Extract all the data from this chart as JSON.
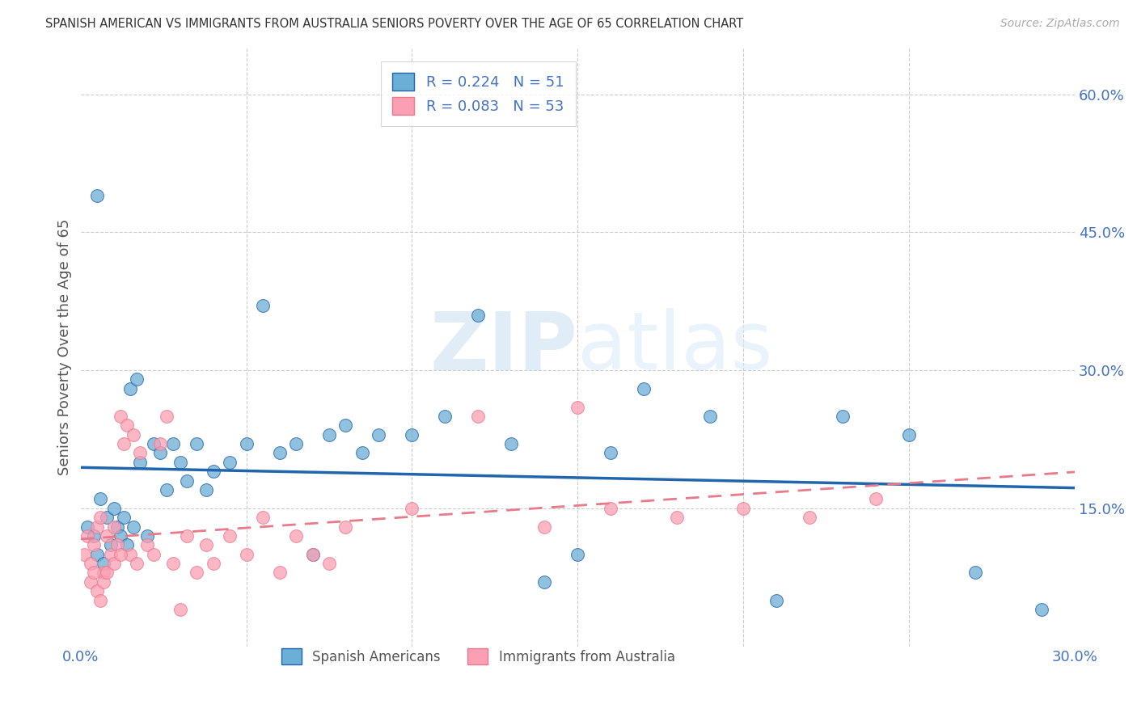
{
  "title": "SPANISH AMERICAN VS IMMIGRANTS FROM AUSTRALIA SENIORS POVERTY OVER THE AGE OF 65 CORRELATION CHART",
  "source": "Source: ZipAtlas.com",
  "ylabel": "Seniors Poverty Over the Age of 65",
  "right_yticks": [
    0.0,
    0.15,
    0.3,
    0.45,
    0.6
  ],
  "right_yticklabels": [
    "",
    "15.0%",
    "30.0%",
    "45.0%",
    "60.0%"
  ],
  "xlim": [
    0.0,
    0.3
  ],
  "ylim": [
    0.0,
    0.65
  ],
  "xticks": [
    0.0,
    0.05,
    0.1,
    0.15,
    0.2,
    0.25,
    0.3
  ],
  "xticklabels": [
    "0.0%",
    "",
    "",
    "",
    "",
    "",
    "30.0%"
  ],
  "legend_label1": "Spanish Americans",
  "legend_label2": "Immigrants from Australia",
  "r1": 0.224,
  "n1": 51,
  "r2": 0.083,
  "n2": 53,
  "color1": "#6baed6",
  "color2": "#fc9fb5",
  "trendline1_color": "#2166ac",
  "trendline2_color": "#e87a8a",
  "watermark_zip": "ZIP",
  "watermark_atlas": "atlas",
  "background_color": "#ffffff",
  "grid_color": "#cccccc",
  "spanish_x": [
    0.002,
    0.004,
    0.005,
    0.006,
    0.007,
    0.008,
    0.009,
    0.01,
    0.011,
    0.012,
    0.013,
    0.014,
    0.015,
    0.016,
    0.017,
    0.018,
    0.02,
    0.022,
    0.024,
    0.026,
    0.028,
    0.03,
    0.032,
    0.035,
    0.038,
    0.04,
    0.045,
    0.05,
    0.055,
    0.06,
    0.065,
    0.07,
    0.075,
    0.08,
    0.085,
    0.09,
    0.1,
    0.11,
    0.12,
    0.13,
    0.14,
    0.15,
    0.16,
    0.17,
    0.19,
    0.21,
    0.23,
    0.25,
    0.27,
    0.29,
    0.005
  ],
  "spanish_y": [
    0.13,
    0.12,
    0.1,
    0.16,
    0.09,
    0.14,
    0.11,
    0.15,
    0.13,
    0.12,
    0.14,
    0.11,
    0.28,
    0.13,
    0.29,
    0.2,
    0.12,
    0.22,
    0.21,
    0.17,
    0.22,
    0.2,
    0.18,
    0.22,
    0.17,
    0.19,
    0.2,
    0.22,
    0.37,
    0.21,
    0.22,
    0.1,
    0.23,
    0.24,
    0.21,
    0.23,
    0.23,
    0.25,
    0.36,
    0.22,
    0.07,
    0.1,
    0.21,
    0.28,
    0.25,
    0.05,
    0.25,
    0.23,
    0.08,
    0.04,
    0.49
  ],
  "australia_x": [
    0.001,
    0.002,
    0.003,
    0.004,
    0.005,
    0.006,
    0.007,
    0.008,
    0.009,
    0.01,
    0.011,
    0.012,
    0.013,
    0.014,
    0.015,
    0.016,
    0.017,
    0.018,
    0.02,
    0.022,
    0.024,
    0.026,
    0.028,
    0.03,
    0.032,
    0.035,
    0.038,
    0.04,
    0.045,
    0.05,
    0.055,
    0.06,
    0.065,
    0.07,
    0.075,
    0.08,
    0.1,
    0.12,
    0.14,
    0.16,
    0.18,
    0.2,
    0.22,
    0.24,
    0.003,
    0.004,
    0.005,
    0.006,
    0.007,
    0.008,
    0.15,
    0.01,
    0.012
  ],
  "australia_y": [
    0.1,
    0.12,
    0.09,
    0.11,
    0.13,
    0.14,
    0.08,
    0.12,
    0.1,
    0.13,
    0.11,
    0.25,
    0.22,
    0.24,
    0.1,
    0.23,
    0.09,
    0.21,
    0.11,
    0.1,
    0.22,
    0.25,
    0.09,
    0.04,
    0.12,
    0.08,
    0.11,
    0.09,
    0.12,
    0.1,
    0.14,
    0.08,
    0.12,
    0.1,
    0.09,
    0.13,
    0.15,
    0.25,
    0.13,
    0.15,
    0.14,
    0.15,
    0.14,
    0.16,
    0.07,
    0.08,
    0.06,
    0.05,
    0.07,
    0.08,
    0.26,
    0.09,
    0.1
  ]
}
